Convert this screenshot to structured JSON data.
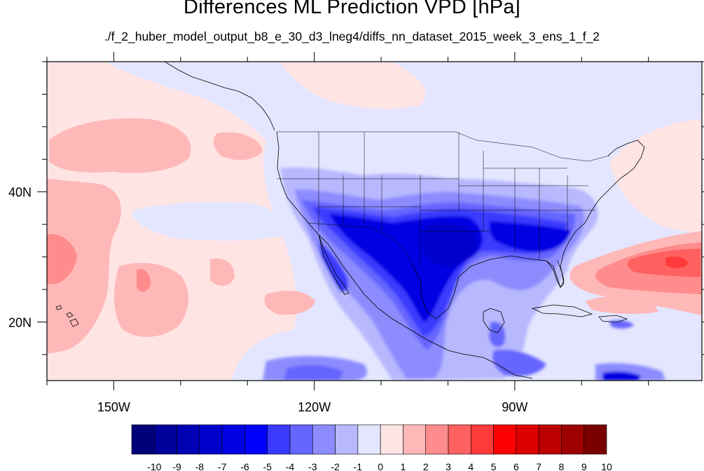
{
  "title": "Differences ML Prediction VPD [hPa]",
  "subtitle": "./f_2_huber_model_output_b8_e_30_d3_lneg4/diffs_nn_dataset_2015_week_3_ens_1_f_2",
  "map": {
    "lon_range": [
      -160,
      -62
    ],
    "lat_range": [
      11,
      60
    ],
    "lon_ticks": [
      {
        "value": -150,
        "label": "150W"
      },
      {
        "value": -120,
        "label": "120W"
      },
      {
        "value": -90,
        "label": "90W"
      }
    ],
    "lat_ticks": [
      {
        "value": 40,
        "label": "40N"
      },
      {
        "value": 20,
        "label": "20N"
      }
    ]
  },
  "colorbar": {
    "levels": [
      "-10",
      "-9",
      "-8",
      "-7",
      "-6",
      "-5",
      "-4",
      "-3",
      "-2",
      "-1",
      "0",
      "1",
      "2",
      "3",
      "4",
      "5",
      "6",
      "7",
      "8",
      "9",
      "10"
    ],
    "colors": [
      "#00007a",
      "#00009a",
      "#0000b4",
      "#0000cc",
      "#0000e2",
      "#0000ff",
      "#3a3aff",
      "#6565ff",
      "#8c8cff",
      "#b8b8ff",
      "#e4e6ff",
      "#ffe4e4",
      "#ffb8b8",
      "#ff8c8c",
      "#ff6060",
      "#ff3a3a",
      "#ff0000",
      "#dc0000",
      "#bc0000",
      "#9e0000",
      "#7a0000"
    ]
  }
}
